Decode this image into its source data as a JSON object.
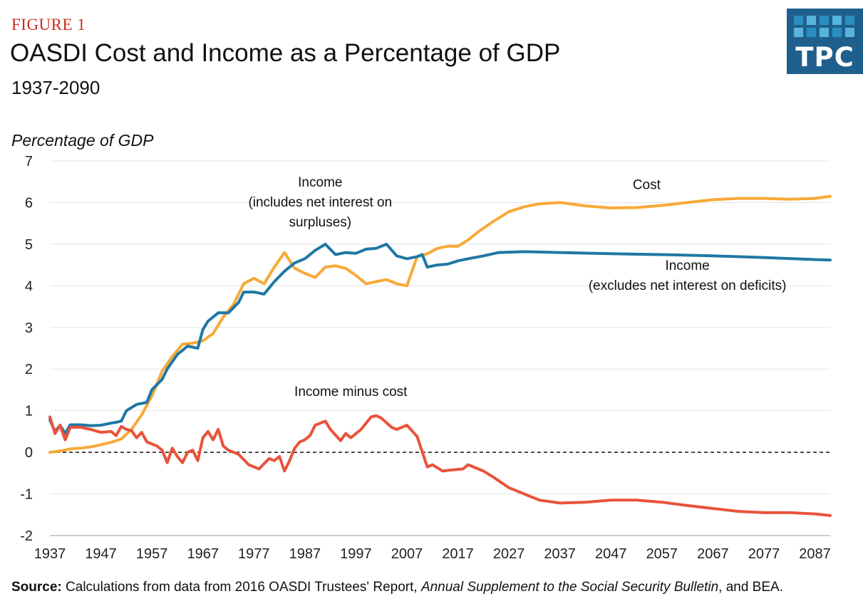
{
  "header": {
    "figure_label": "FIGURE 1",
    "title": "OASDI Cost and Income as a Percentage of GDP",
    "subtitle": "1937-2090"
  },
  "logo": {
    "text": "TPC",
    "icon": "tpc-logo-icon",
    "color": "#1f5f8e",
    "square_colors": [
      "#2b8ec0",
      "#57b4dd"
    ]
  },
  "source": {
    "label": "Source:",
    "text_1": " Calculations from data from 2016 OASDI Trustees' Report, ",
    "italic": "Annual Supplement to the Social Security Bulletin",
    "text_2": ", and BEA."
  },
  "chart_data": {
    "type": "line",
    "ylabel": "Percentage of GDP",
    "xlabel": "",
    "xlim": [
      1937,
      2090
    ],
    "ylim": [
      -2,
      7
    ],
    "x_ticks": [
      1937,
      1947,
      1957,
      1967,
      1977,
      1987,
      1997,
      2007,
      2017,
      2027,
      2037,
      2047,
      2057,
      2067,
      2077,
      2087
    ],
    "y_ticks": [
      -2,
      -1,
      0,
      1,
      2,
      3,
      4,
      5,
      6,
      7
    ],
    "grid": "horizontal",
    "zero_line": "dashed",
    "series": [
      {
        "color": "#f7a937",
        "points": [
          [
            1937,
            0.0
          ],
          [
            1939,
            0.03
          ],
          [
            1941,
            0.08
          ],
          [
            1943,
            0.1
          ],
          [
            1945,
            0.13
          ],
          [
            1947,
            0.18
          ],
          [
            1949,
            0.24
          ],
          [
            1951,
            0.32
          ],
          [
            1953,
            0.55
          ],
          [
            1955,
            0.9
          ],
          [
            1957,
            1.35
          ],
          [
            1959,
            1.95
          ],
          [
            1961,
            2.3
          ],
          [
            1963,
            2.6
          ],
          [
            1965,
            2.62
          ],
          [
            1967,
            2.68
          ],
          [
            1969,
            2.85
          ],
          [
            1971,
            3.25
          ],
          [
            1973,
            3.55
          ],
          [
            1975,
            4.05
          ],
          [
            1977,
            4.18
          ],
          [
            1979,
            4.05
          ],
          [
            1981,
            4.45
          ],
          [
            1983,
            4.8
          ],
          [
            1985,
            4.42
          ],
          [
            1987,
            4.3
          ],
          [
            1989,
            4.2
          ],
          [
            1991,
            4.45
          ],
          [
            1993,
            4.48
          ],
          [
            1995,
            4.42
          ],
          [
            1997,
            4.25
          ],
          [
            1999,
            4.05
          ],
          [
            2001,
            4.1
          ],
          [
            2003,
            4.15
          ],
          [
            2005,
            4.05
          ],
          [
            2007,
            4.0
          ],
          [
            2009,
            4.7
          ],
          [
            2011,
            4.77
          ],
          [
            2013,
            4.9
          ],
          [
            2015,
            4.95
          ],
          [
            2017,
            4.95
          ],
          [
            2019,
            5.1
          ],
          [
            2021,
            5.3
          ],
          [
            2024,
            5.55
          ],
          [
            2027,
            5.78
          ],
          [
            2030,
            5.9
          ],
          [
            2033,
            5.97
          ],
          [
            2037,
            6.0
          ],
          [
            2042,
            5.92
          ],
          [
            2047,
            5.87
          ],
          [
            2052,
            5.88
          ],
          [
            2057,
            5.93
          ],
          [
            2062,
            6.0
          ],
          [
            2067,
            6.07
          ],
          [
            2072,
            6.1
          ],
          [
            2077,
            6.1
          ],
          [
            2082,
            6.08
          ],
          [
            2087,
            6.1
          ],
          [
            2090,
            6.15
          ]
        ]
      },
      {
        "color": "#1f77a4",
        "points": [
          [
            1937,
            0.78
          ],
          [
            1938,
            0.5
          ],
          [
            1939,
            0.65
          ],
          [
            1940,
            0.45
          ],
          [
            1941,
            0.66
          ],
          [
            1943,
            0.66
          ],
          [
            1945,
            0.64
          ],
          [
            1947,
            0.65
          ],
          [
            1949,
            0.7
          ],
          [
            1950,
            0.72
          ],
          [
            1951,
            0.75
          ],
          [
            1952,
            1.0
          ],
          [
            1954,
            1.15
          ],
          [
            1956,
            1.2
          ],
          [
            1957,
            1.5
          ],
          [
            1959,
            1.75
          ],
          [
            1960,
            2.0
          ],
          [
            1962,
            2.35
          ],
          [
            1964,
            2.55
          ],
          [
            1966,
            2.5
          ],
          [
            1967,
            2.95
          ],
          [
            1968,
            3.15
          ],
          [
            1970,
            3.35
          ],
          [
            1972,
            3.35
          ],
          [
            1974,
            3.6
          ],
          [
            1975,
            3.85
          ],
          [
            1977,
            3.85
          ],
          [
            1979,
            3.8
          ],
          [
            1981,
            4.1
          ],
          [
            1983,
            4.35
          ],
          [
            1985,
            4.55
          ],
          [
            1987,
            4.65
          ],
          [
            1989,
            4.85
          ],
          [
            1991,
            5.0
          ],
          [
            1993,
            4.75
          ],
          [
            1995,
            4.8
          ],
          [
            1997,
            4.78
          ],
          [
            1999,
            4.88
          ],
          [
            2001,
            4.9
          ],
          [
            2003,
            5.0
          ],
          [
            2005,
            4.72
          ],
          [
            2007,
            4.65
          ],
          [
            2009,
            4.7
          ],
          [
            2010,
            4.75
          ],
          [
            2011,
            4.45
          ],
          [
            2013,
            4.5
          ],
          [
            2015,
            4.52
          ],
          [
            2017,
            4.6
          ],
          [
            2019,
            4.65
          ],
          [
            2022,
            4.72
          ],
          [
            2025,
            4.8
          ],
          [
            2030,
            4.82
          ],
          [
            2037,
            4.8
          ],
          [
            2047,
            4.77
          ],
          [
            2057,
            4.75
          ],
          [
            2067,
            4.72
          ],
          [
            2077,
            4.68
          ],
          [
            2087,
            4.63
          ],
          [
            2090,
            4.62
          ]
        ]
      },
      {
        "color": "#e8533a",
        "points": [
          [
            1937,
            0.85
          ],
          [
            1938,
            0.45
          ],
          [
            1939,
            0.65
          ],
          [
            1940,
            0.3
          ],
          [
            1941,
            0.6
          ],
          [
            1943,
            0.6
          ],
          [
            1945,
            0.55
          ],
          [
            1947,
            0.48
          ],
          [
            1949,
            0.5
          ],
          [
            1950,
            0.4
          ],
          [
            1951,
            0.62
          ],
          [
            1952,
            0.55
          ],
          [
            1953,
            0.52
          ],
          [
            1954,
            0.35
          ],
          [
            1955,
            0.48
          ],
          [
            1956,
            0.25
          ],
          [
            1958,
            0.15
          ],
          [
            1959,
            0.05
          ],
          [
            1960,
            -0.25
          ],
          [
            1961,
            0.1
          ],
          [
            1962,
            -0.1
          ],
          [
            1963,
            -0.25
          ],
          [
            1964,
            0.0
          ],
          [
            1965,
            0.05
          ],
          [
            1966,
            -0.2
          ],
          [
            1967,
            0.35
          ],
          [
            1968,
            0.5
          ],
          [
            1969,
            0.3
          ],
          [
            1970,
            0.55
          ],
          [
            1971,
            0.15
          ],
          [
            1972,
            0.05
          ],
          [
            1974,
            -0.05
          ],
          [
            1976,
            -0.3
          ],
          [
            1978,
            -0.4
          ],
          [
            1980,
            -0.15
          ],
          [
            1981,
            -0.2
          ],
          [
            1982,
            -0.1
          ],
          [
            1983,
            -0.45
          ],
          [
            1984,
            -0.2
          ],
          [
            1985,
            0.1
          ],
          [
            1986,
            0.25
          ],
          [
            1987,
            0.3
          ],
          [
            1988,
            0.4
          ],
          [
            1989,
            0.65
          ],
          [
            1991,
            0.75
          ],
          [
            1992,
            0.55
          ],
          [
            1994,
            0.28
          ],
          [
            1995,
            0.45
          ],
          [
            1996,
            0.35
          ],
          [
            1998,
            0.55
          ],
          [
            2000,
            0.85
          ],
          [
            2001,
            0.88
          ],
          [
            2002,
            0.82
          ],
          [
            2004,
            0.6
          ],
          [
            2005,
            0.55
          ],
          [
            2007,
            0.65
          ],
          [
            2009,
            0.38
          ],
          [
            2011,
            -0.35
          ],
          [
            2012,
            -0.3
          ],
          [
            2014,
            -0.45
          ],
          [
            2016,
            -0.42
          ],
          [
            2018,
            -0.4
          ],
          [
            2019,
            -0.3
          ],
          [
            2022,
            -0.45
          ],
          [
            2024,
            -0.6
          ],
          [
            2027,
            -0.85
          ],
          [
            2030,
            -1.0
          ],
          [
            2033,
            -1.15
          ],
          [
            2037,
            -1.22
          ],
          [
            2042,
            -1.2
          ],
          [
            2047,
            -1.15
          ],
          [
            2052,
            -1.15
          ],
          [
            2057,
            -1.2
          ],
          [
            2062,
            -1.28
          ],
          [
            2067,
            -1.35
          ],
          [
            2072,
            -1.42
          ],
          [
            2077,
            -1.45
          ],
          [
            2082,
            -1.45
          ],
          [
            2087,
            -1.48
          ],
          [
            2090,
            -1.52
          ]
        ]
      }
    ],
    "annotations": [
      {
        "lines": [
          "Income",
          "(includes net interest on",
          "surpluses)"
        ],
        "x": 1990,
        "y": 6.38
      },
      {
        "lines": [
          "Cost"
        ],
        "x": 2054,
        "y": 6.32
      },
      {
        "lines": [
          "Income",
          "(excludes net interest on deficits)"
        ],
        "x": 2062,
        "y": 4.38
      },
      {
        "lines": [
          "Income minus cost"
        ],
        "x": 1996,
        "y": 1.35
      }
    ]
  }
}
